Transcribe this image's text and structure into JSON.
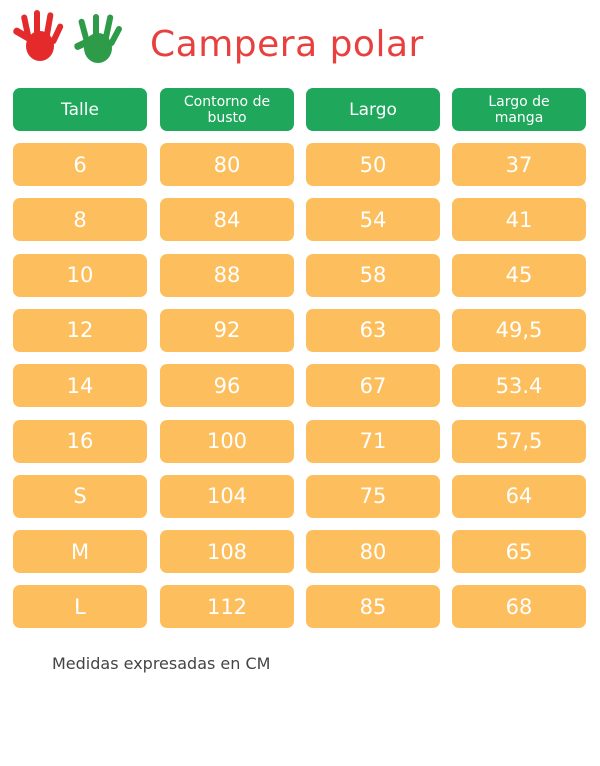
{
  "header": {
    "title": "Campera polar"
  },
  "table": {
    "headers": [
      "Talle",
      "Contorno de busto",
      "Largo",
      "Largo de manga"
    ],
    "rows": [
      [
        "6",
        "80",
        "50",
        "37"
      ],
      [
        "8",
        "84",
        "54",
        "41"
      ],
      [
        "10",
        "88",
        "58",
        "45"
      ],
      [
        "12",
        "92",
        "63",
        "49,5"
      ],
      [
        "14",
        "96",
        "67",
        "53.4"
      ],
      [
        "16",
        "100",
        "71",
        "57,5"
      ],
      [
        "S",
        "104",
        "75",
        "64"
      ],
      [
        "M",
        "108",
        "80",
        "65"
      ],
      [
        "L",
        "112",
        "85",
        "68"
      ]
    ]
  },
  "footer": {
    "note": "Medidas expresadas en CM"
  }
}
